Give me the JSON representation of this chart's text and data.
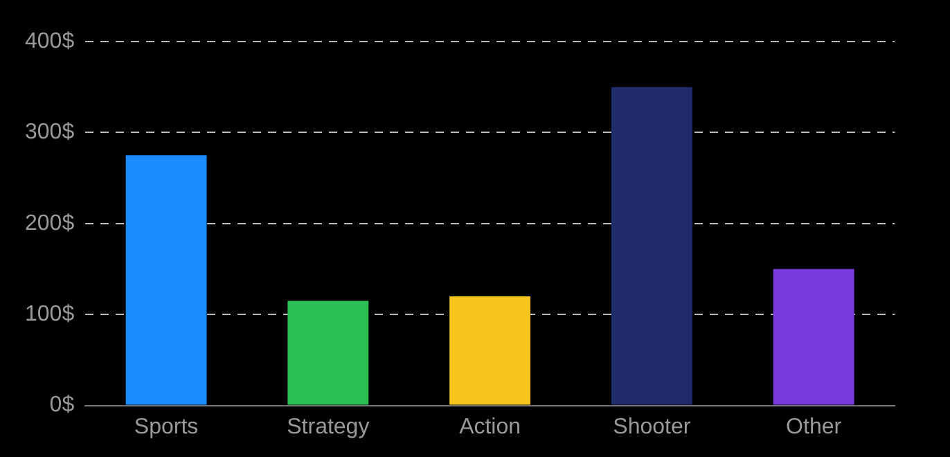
{
  "chart_data": {
    "type": "bar",
    "categories": [
      "Sports",
      "Strategy",
      "Action",
      "Shooter",
      "Other"
    ],
    "values": [
      275,
      115,
      120,
      350,
      150
    ],
    "colors": [
      "#1a8cff",
      "#2bbf55",
      "#f8c51c",
      "#1f2b6b",
      "#7b3ae0"
    ],
    "ylim": [
      0,
      400
    ],
    "yticks": [
      {
        "value": 0,
        "label": "0$"
      },
      {
        "value": 100,
        "label": "100$"
      },
      {
        "value": 200,
        "label": "200$"
      },
      {
        "value": 300,
        "label": "300$"
      },
      {
        "value": 400,
        "label": "400$"
      }
    ],
    "grid": "y",
    "legend": false
  }
}
